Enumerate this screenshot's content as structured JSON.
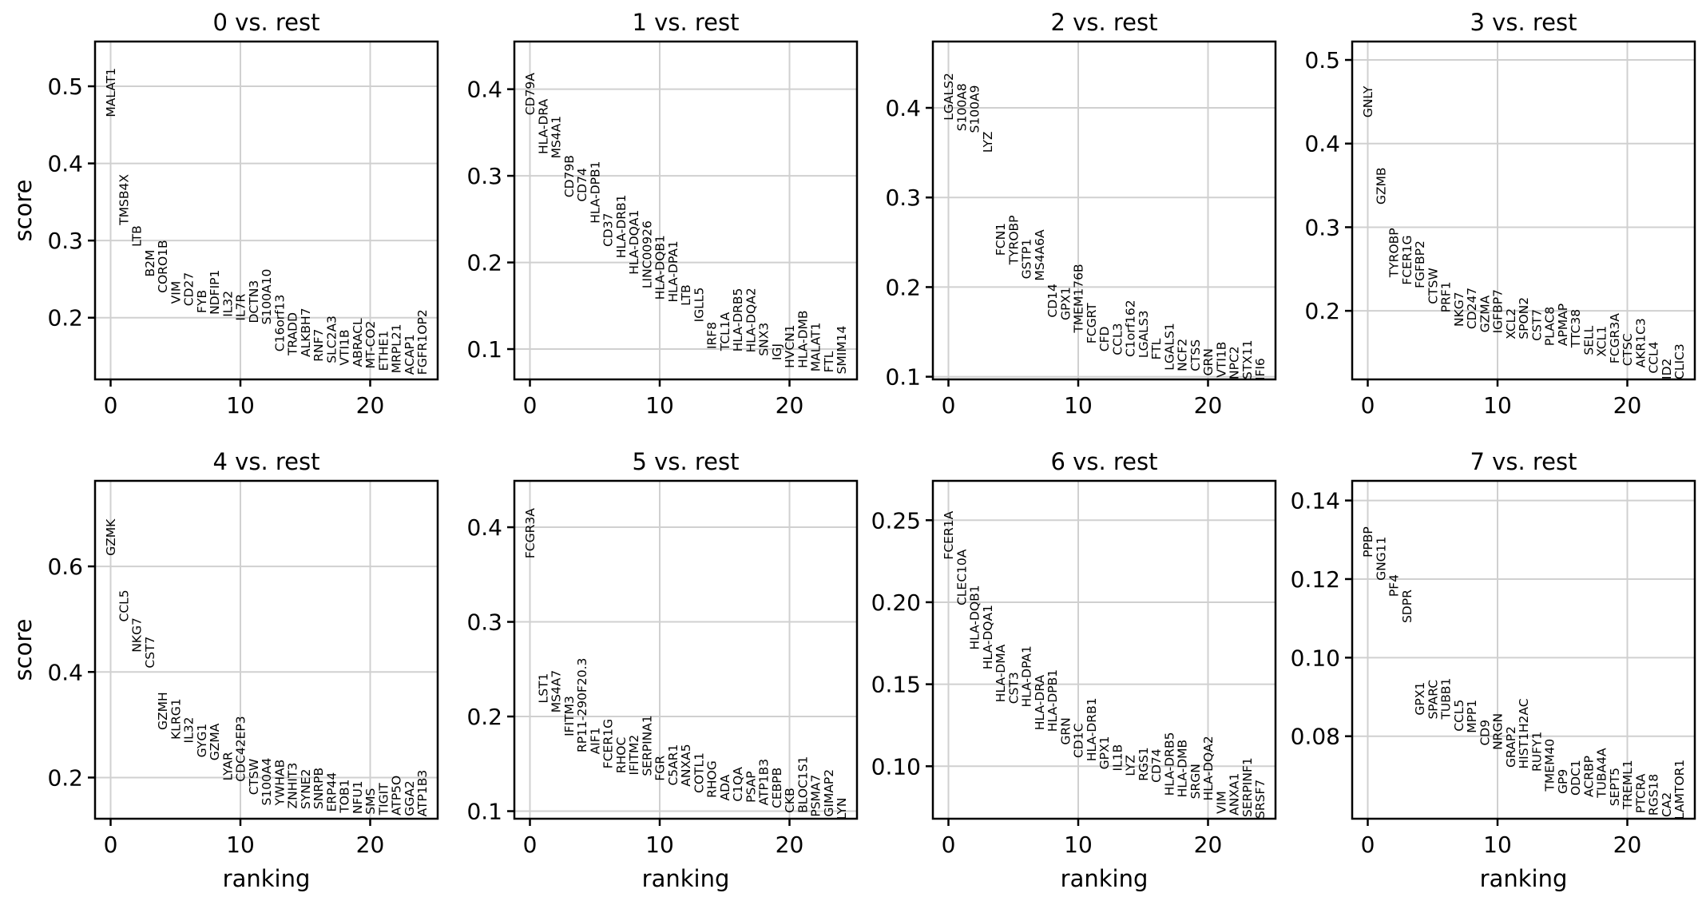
{
  "figure": {
    "background": "#ffffff",
    "text_color": "#000000",
    "grid_color": "#d0d0d0",
    "spine_color": "#000000",
    "xlabel": "ranking",
    "ylabel": "score"
  },
  "chart_data": [
    {
      "type": "scatter",
      "title": "0 vs. rest",
      "xlabel": "ranking",
      "ylabel": "score",
      "show_xlabel": false,
      "show_ylabel": true,
      "grid": true,
      "xlim": [
        -1.2,
        25.2
      ],
      "xticks": [
        0,
        10,
        20
      ],
      "xtick_labels": [
        "0",
        "10",
        "20"
      ],
      "ylim": [
        0.12,
        0.558
      ],
      "yticks": [
        0.2,
        0.3,
        0.4,
        0.5
      ],
      "ytick_labels": [
        "0.2",
        "0.3",
        "0.4",
        "0.5"
      ],
      "genes": [
        "MALAT1",
        "TMSB4X",
        "LTB",
        "B2M",
        "CORO1B",
        "VIM",
        "CD27",
        "FYB",
        "NDFIP1",
        "IL32",
        "IL7R",
        "DCTN3",
        "S100A10",
        "C16orf13",
        "TRADD",
        "ALKBH7",
        "RNF7",
        "SLC2A3",
        "VTI1B",
        "ABRACL",
        "MT-CO2",
        "ETHE1",
        "MRPL21",
        "ACAP1",
        "FGFR1OP2"
      ],
      "scores": [
        0.46,
        0.32,
        0.292,
        0.253,
        0.232,
        0.218,
        0.215,
        0.206,
        0.204,
        0.201,
        0.196,
        0.193,
        0.191,
        0.156,
        0.151,
        0.149,
        0.143,
        0.141,
        0.138,
        0.136,
        0.134,
        0.131,
        0.128,
        0.126,
        0.126
      ]
    },
    {
      "type": "scatter",
      "title": "1 vs. rest",
      "xlabel": "ranking",
      "ylabel": "score",
      "show_xlabel": false,
      "show_ylabel": false,
      "grid": true,
      "xlim": [
        -1.2,
        25.2
      ],
      "xticks": [
        0,
        10,
        20
      ],
      "xtick_labels": [
        "0",
        "10",
        "20"
      ],
      "ylim": [
        0.065,
        0.455
      ],
      "yticks": [
        0.1,
        0.2,
        0.3,
        0.4
      ],
      "ytick_labels": [
        "0.1",
        "0.2",
        "0.3",
        "0.4"
      ],
      "genes": [
        "CD79A",
        "HLA-DRA",
        "MS4A1",
        "CD79B",
        "CD74",
        "HLA-DPB1",
        "CD37",
        "HLA-DRB1",
        "HLA-DQA1",
        "LINC00926",
        "HLA-DQB1",
        "HLA-DPA1",
        "LTB",
        "IGLL5",
        "IRF8",
        "TCL1A",
        "HLA-DRB5",
        "HLA-DQA2",
        "SNX3",
        "IGJ",
        "HVCN1",
        "HLA-DMB",
        "MALAT1",
        "FTL",
        "SMIM14"
      ],
      "scores": [
        0.37,
        0.325,
        0.32,
        0.275,
        0.27,
        0.245,
        0.218,
        0.205,
        0.186,
        0.17,
        0.157,
        0.154,
        0.15,
        0.131,
        0.1,
        0.098,
        0.097,
        0.096,
        0.092,
        0.087,
        0.078,
        0.078,
        0.074,
        0.073,
        0.071
      ]
    },
    {
      "type": "scatter",
      "title": "2 vs. rest",
      "xlabel": "ranking",
      "ylabel": "score",
      "show_xlabel": false,
      "show_ylabel": false,
      "grid": true,
      "xlim": [
        -1.2,
        25.2
      ],
      "xticks": [
        0,
        10,
        20
      ],
      "xtick_labels": [
        "0",
        "10",
        "20"
      ],
      "ylim": [
        0.097,
        0.474
      ],
      "yticks": [
        0.1,
        0.2,
        0.3,
        0.4
      ],
      "ytick_labels": [
        "0.1",
        "0.2",
        "0.3",
        "0.4"
      ],
      "genes": [
        "LGALS2",
        "S100A8",
        "S100A9",
        "LYZ",
        "FCN1",
        "TYROBP",
        "GSTP1",
        "MS4A6A",
        "CD14",
        "GPX1",
        "TMEM176B",
        "FCGRT",
        "CFD",
        "CCL3",
        "C1orf162",
        "LGALS3",
        "FTL",
        "LGALS1",
        "NCF2",
        "CTSS",
        "GRN",
        "VTI1B",
        "NPC2",
        "STX11",
        "IFI6"
      ],
      "scores": [
        0.386,
        0.374,
        0.372,
        0.35,
        0.235,
        0.225,
        0.209,
        0.207,
        0.166,
        0.163,
        0.149,
        0.137,
        0.128,
        0.124,
        0.122,
        0.121,
        0.119,
        0.107,
        0.106,
        0.106,
        0.101,
        0.099,
        0.097,
        0.097,
        0.096
      ]
    },
    {
      "type": "scatter",
      "title": "3 vs. rest",
      "xlabel": "ranking",
      "ylabel": "score",
      "show_xlabel": false,
      "show_ylabel": false,
      "grid": true,
      "xlim": [
        -1.2,
        25.2
      ],
      "xticks": [
        0,
        10,
        20
      ],
      "xtick_labels": [
        "0",
        "10",
        "20"
      ],
      "ylim": [
        0.118,
        0.522
      ],
      "yticks": [
        0.2,
        0.3,
        0.4,
        0.5
      ],
      "ytick_labels": [
        "0.2",
        "0.3",
        "0.4",
        "0.5"
      ],
      "genes": [
        "GNLY",
        "GZMB",
        "TYROBP",
        "FCER1G",
        "FGFBP2",
        "CTSW",
        "PRF1",
        "NKG7",
        "CD247",
        "GZMA",
        "IGFBP7",
        "XCL2",
        "SPON2",
        "CST7",
        "PLAC8",
        "APMAP",
        "TTC38",
        "SELL",
        "XCL1",
        "FCGR3A",
        "CTSC",
        "AKR1C3",
        "CCL4",
        "ID2",
        "CLIC3"
      ],
      "scores": [
        0.431,
        0.327,
        0.24,
        0.231,
        0.227,
        0.208,
        0.198,
        0.181,
        0.178,
        0.174,
        0.173,
        0.166,
        0.166,
        0.164,
        0.158,
        0.158,
        0.156,
        0.147,
        0.145,
        0.137,
        0.134,
        0.132,
        0.125,
        0.118,
        0.118
      ]
    },
    {
      "type": "scatter",
      "title": "4 vs. rest",
      "xlabel": "ranking",
      "ylabel": "score",
      "show_xlabel": true,
      "show_ylabel": true,
      "grid": true,
      "xlim": [
        -1.2,
        25.2
      ],
      "xticks": [
        0,
        10,
        20
      ],
      "xtick_labels": [
        "0",
        "10",
        "20"
      ],
      "ylim": [
        0.122,
        0.762
      ],
      "yticks": [
        0.2,
        0.4,
        0.6
      ],
      "ytick_labels": [
        "0.2",
        "0.4",
        "0.6"
      ],
      "genes": [
        "GZMK",
        "CCL5",
        "NKG7",
        "CST7",
        "GZMH",
        "KLRG1",
        "IL32",
        "GYG1",
        "GZMA",
        "LYAR",
        "CDC42EP3",
        "CTSW",
        "S100A4",
        "YWHAB",
        "ZNHIT3",
        "SYNE2",
        "SNRPB",
        "ERP44",
        "TOB1",
        "NFU1",
        "SMS",
        "TIGIT",
        "ATP5O",
        "GGA2",
        "ATP1B3"
      ],
      "scores": [
        0.62,
        0.495,
        0.437,
        0.407,
        0.29,
        0.272,
        0.265,
        0.238,
        0.232,
        0.194,
        0.192,
        0.167,
        0.147,
        0.147,
        0.141,
        0.14,
        0.14,
        0.135,
        0.133,
        0.131,
        0.13,
        0.129,
        0.128,
        0.127,
        0.126
      ]
    },
    {
      "type": "scatter",
      "title": "5 vs. rest",
      "xlabel": "ranking",
      "ylabel": "score",
      "show_xlabel": true,
      "show_ylabel": false,
      "grid": true,
      "xlim": [
        -1.2,
        25.2
      ],
      "xticks": [
        0,
        10,
        20
      ],
      "xtick_labels": [
        "0",
        "10",
        "20"
      ],
      "ylim": [
        0.092,
        0.449
      ],
      "yticks": [
        0.1,
        0.2,
        0.3,
        0.4
      ],
      "ytick_labels": [
        "0.1",
        "0.2",
        "0.3",
        "0.4"
      ],
      "genes": [
        "FCGR3A",
        "LST1",
        "MS4A7",
        "IFITM3",
        "RP11-290F20.3",
        "AIF1",
        "FCER1G",
        "RHOC",
        "IFITM2",
        "SERPINA1",
        "FGR",
        "C5AR1",
        "ANXA5",
        "COTL1",
        "RHOG",
        "ADA",
        "C1QA",
        "PSAP",
        "ATP1B3",
        "CEBPB",
        "CKB",
        "BLOC1S1",
        "PSMA7",
        "GIMAP2",
        "LYN"
      ],
      "scores": [
        0.367,
        0.214,
        0.204,
        0.179,
        0.162,
        0.16,
        0.145,
        0.14,
        0.138,
        0.137,
        0.132,
        0.127,
        0.126,
        0.119,
        0.114,
        0.111,
        0.11,
        0.109,
        0.106,
        0.103,
        0.098,
        0.098,
        0.094,
        0.094,
        0.091
      ]
    },
    {
      "type": "scatter",
      "title": "6 vs. rest",
      "xlabel": "ranking",
      "ylabel": "score",
      "show_xlabel": true,
      "show_ylabel": false,
      "grid": true,
      "xlim": [
        -1.2,
        25.2
      ],
      "xticks": [
        0,
        10,
        20
      ],
      "xtick_labels": [
        "0",
        "10",
        "20"
      ],
      "ylim": [
        0.068,
        0.274
      ],
      "yticks": [
        0.1,
        0.15,
        0.2,
        0.25
      ],
      "ytick_labels": [
        "0.10",
        "0.15",
        "0.20",
        "0.25"
      ],
      "genes": [
        "FCER1A",
        "CLEC10A",
        "HLA-DQB1",
        "HLA-DQA1",
        "HLA-DMA",
        "CST3",
        "HLA-DPA1",
        "HLA-DRA",
        "HLA-DPB1",
        "GRN",
        "CD1C",
        "HLA-DRB1",
        "GPX1",
        "IL1B",
        "LYZ",
        "RGS1",
        "CD74",
        "HLA-DRB5",
        "HLA-DMB",
        "SRGN",
        "HLA-DQA2",
        "VIM",
        "ANXA1",
        "SERPINF1",
        "SRSF7"
      ],
      "scores": [
        0.226,
        0.198,
        0.171,
        0.159,
        0.139,
        0.138,
        0.136,
        0.122,
        0.121,
        0.113,
        0.105,
        0.103,
        0.098,
        0.097,
        0.094,
        0.091,
        0.09,
        0.082,
        0.081,
        0.08,
        0.079,
        0.071,
        0.07,
        0.069,
        0.068
      ]
    },
    {
      "type": "scatter",
      "title": "7 vs. rest",
      "xlabel": "ranking",
      "ylabel": "score",
      "show_xlabel": true,
      "show_ylabel": false,
      "grid": true,
      "xlim": [
        -1.2,
        25.2
      ],
      "xticks": [
        0,
        10,
        20
      ],
      "xtick_labels": [
        "0",
        "10",
        "20"
      ],
      "ylim": [
        0.059,
        0.145
      ],
      "yticks": [
        0.08,
        0.1,
        0.12,
        0.14
      ],
      "ytick_labels": [
        "0.08",
        "0.10",
        "0.12",
        "0.14"
      ],
      "genes": [
        "PPBP",
        "GNG11",
        "PF4",
        "SDPR",
        "GPX1",
        "SPARC",
        "TUBB1",
        "CCL5",
        "MPP1",
        "CD9",
        "NRGN",
        "GRAP2",
        "HIST1H2AC",
        "RUFY1",
        "TMEM40",
        "GP9",
        "ODC1",
        "ACRBP",
        "TUBA4A",
        "SEPT5",
        "TREML1",
        "PTCRA",
        "RGS18",
        "CA2",
        "LAMTOR1"
      ],
      "scores": [
        0.1255,
        0.1196,
        0.1155,
        0.1088,
        0.0853,
        0.0843,
        0.0843,
        0.0812,
        0.0808,
        0.0776,
        0.0765,
        0.072,
        0.0717,
        0.071,
        0.066,
        0.0653,
        0.0649,
        0.0645,
        0.0643,
        0.0622,
        0.0614,
        0.0604,
        0.0598,
        0.0594,
        0.0588
      ]
    }
  ]
}
